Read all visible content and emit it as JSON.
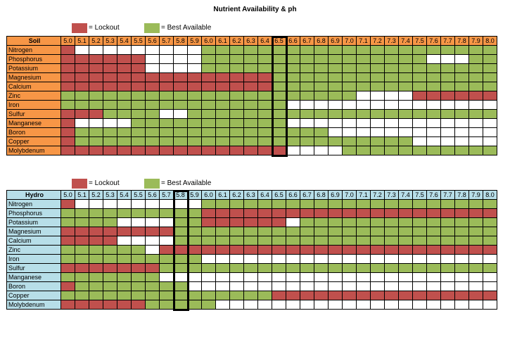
{
  "title": "Nutrient Availability & ph",
  "colors": {
    "lockout": "#c0504d",
    "best": "#9bbb59",
    "empty": "#ffffff",
    "soil_header": "#f79646",
    "hydro_header": "#b7dee8"
  },
  "legend": {
    "lockout": "= Lockout",
    "best": "= Best Available"
  },
  "chart_data": [
    {
      "type": "heatmap",
      "name": "Soil",
      "x": [
        "5.0",
        "5.1",
        "5.2",
        "5.3",
        "5.4",
        "5.5",
        "5.6",
        "5.7",
        "5.8",
        "5.9",
        "6.0",
        "6.1",
        "6.2",
        "6.3",
        "6.4",
        "6.5",
        "6.6",
        "6.7",
        "6.8",
        "6.9",
        "7.0",
        "7.1",
        "7.2",
        "7.3",
        "7.4",
        "7.5",
        "7.6",
        "7.7",
        "7.8",
        "7.9",
        "8.0"
      ],
      "highlight": "6.5",
      "value_legend": {
        "0": "empty",
        "1": "Lockout",
        "2": "Best Available"
      },
      "rows": [
        {
          "label": "Nitrogen",
          "values": [
            1,
            0,
            0,
            0,
            0,
            0,
            0,
            0,
            0,
            0,
            2,
            2,
            2,
            2,
            2,
            2,
            2,
            2,
            2,
            2,
            2,
            2,
            2,
            2,
            2,
            2,
            2,
            2,
            2,
            2,
            2
          ]
        },
        {
          "label": "Phosphorus",
          "values": [
            1,
            1,
            1,
            1,
            1,
            1,
            0,
            0,
            0,
            0,
            2,
            2,
            2,
            2,
            2,
            2,
            2,
            2,
            2,
            2,
            2,
            2,
            2,
            2,
            2,
            2,
            0,
            0,
            0,
            2,
            2
          ]
        },
        {
          "label": "Potassium",
          "values": [
            1,
            1,
            1,
            1,
            1,
            1,
            0,
            0,
            0,
            0,
            2,
            2,
            2,
            2,
            2,
            2,
            2,
            2,
            2,
            2,
            2,
            2,
            2,
            2,
            2,
            2,
            2,
            2,
            2,
            2,
            2
          ]
        },
        {
          "label": "Magnesium",
          "values": [
            1,
            1,
            1,
            1,
            1,
            1,
            1,
            1,
            1,
            1,
            1,
            1,
            1,
            1,
            1,
            2,
            2,
            2,
            2,
            2,
            2,
            2,
            2,
            2,
            2,
            2,
            2,
            2,
            2,
            2,
            2
          ]
        },
        {
          "label": "Calcium",
          "values": [
            1,
            1,
            1,
            1,
            1,
            1,
            1,
            1,
            1,
            1,
            1,
            1,
            1,
            1,
            1,
            2,
            2,
            2,
            2,
            2,
            2,
            2,
            2,
            2,
            2,
            2,
            2,
            2,
            2,
            2,
            2
          ]
        },
        {
          "label": "Zinc",
          "values": [
            2,
            2,
            2,
            2,
            2,
            2,
            2,
            2,
            2,
            2,
            2,
            2,
            2,
            2,
            2,
            2,
            2,
            2,
            2,
            2,
            2,
            0,
            0,
            0,
            0,
            1,
            1,
            1,
            1,
            1,
            1
          ]
        },
        {
          "label": "Iron",
          "values": [
            2,
            2,
            2,
            2,
            2,
            2,
            2,
            2,
            2,
            2,
            2,
            2,
            2,
            2,
            2,
            2,
            0,
            0,
            0,
            0,
            0,
            0,
            0,
            0,
            0,
            0,
            0,
            0,
            0,
            0,
            0
          ]
        },
        {
          "label": "Sulfur",
          "values": [
            1,
            1,
            1,
            2,
            2,
            2,
            2,
            0,
            0,
            2,
            2,
            2,
            2,
            2,
            2,
            2,
            2,
            2,
            2,
            2,
            2,
            2,
            2,
            2,
            2,
            2,
            2,
            2,
            2,
            2,
            2
          ]
        },
        {
          "label": "Manganese",
          "values": [
            1,
            0,
            0,
            0,
            0,
            2,
            2,
            2,
            2,
            2,
            2,
            2,
            2,
            2,
            2,
            2,
            0,
            0,
            0,
            0,
            0,
            0,
            0,
            0,
            0,
            0,
            0,
            0,
            0,
            0,
            0
          ]
        },
        {
          "label": "Boron",
          "values": [
            1,
            2,
            2,
            2,
            2,
            2,
            2,
            2,
            2,
            2,
            2,
            2,
            2,
            2,
            2,
            2,
            2,
            2,
            2,
            0,
            0,
            0,
            0,
            0,
            0,
            0,
            0,
            0,
            0,
            0,
            0
          ]
        },
        {
          "label": "Copper",
          "values": [
            1,
            2,
            2,
            2,
            2,
            2,
            2,
            2,
            2,
            2,
            2,
            2,
            2,
            2,
            2,
            2,
            2,
            2,
            2,
            2,
            2,
            2,
            2,
            2,
            2,
            0,
            0,
            0,
            0,
            0,
            0
          ]
        },
        {
          "label": "Molybdenum",
          "values": [
            1,
            1,
            1,
            1,
            1,
            1,
            1,
            1,
            1,
            1,
            1,
            1,
            1,
            1,
            1,
            1,
            0,
            0,
            0,
            0,
            2,
            2,
            2,
            2,
            2,
            2,
            2,
            2,
            2,
            2,
            2
          ]
        }
      ]
    },
    {
      "type": "heatmap",
      "name": "Hydro",
      "x": [
        "5.0",
        "5.1",
        "5.2",
        "5.3",
        "5.4",
        "5.5",
        "5.6",
        "5.7",
        "5.8",
        "5.9",
        "6.0",
        "6.1",
        "6.2",
        "6.3",
        "6.4",
        "6.5",
        "6.6",
        "6.7",
        "6.8",
        "6.9",
        "7.0",
        "7.1",
        "7.2",
        "7.3",
        "7.4",
        "7.5",
        "7.6",
        "7.7",
        "7.8",
        "7.9",
        "8.0"
      ],
      "highlight": "5.8",
      "value_legend": {
        "0": "empty",
        "1": "Lockout",
        "2": "Best Available"
      },
      "rows": [
        {
          "label": "Nitrogen",
          "values": [
            1,
            0,
            0,
            0,
            0,
            0,
            0,
            0,
            0,
            0,
            2,
            2,
            2,
            2,
            2,
            2,
            2,
            2,
            2,
            2,
            2,
            2,
            2,
            2,
            2,
            2,
            2,
            2,
            2,
            2,
            2
          ]
        },
        {
          "label": "Phosphorus",
          "values": [
            2,
            2,
            2,
            2,
            2,
            2,
            2,
            2,
            2,
            2,
            1,
            1,
            1,
            1,
            1,
            1,
            1,
            1,
            1,
            1,
            1,
            1,
            1,
            1,
            1,
            1,
            1,
            1,
            1,
            1,
            1
          ]
        },
        {
          "label": "Potassium",
          "values": [
            2,
            2,
            2,
            2,
            0,
            0,
            0,
            0,
            2,
            2,
            1,
            1,
            1,
            1,
            1,
            1,
            0,
            2,
            2,
            2,
            2,
            2,
            2,
            2,
            2,
            2,
            2,
            2,
            2,
            2,
            2
          ]
        },
        {
          "label": "Magnesium",
          "values": [
            1,
            1,
            1,
            1,
            1,
            1,
            1,
            1,
            2,
            2,
            2,
            2,
            2,
            2,
            2,
            2,
            2,
            2,
            2,
            2,
            2,
            2,
            2,
            2,
            2,
            2,
            2,
            2,
            2,
            2,
            2
          ]
        },
        {
          "label": "Calcium",
          "values": [
            1,
            1,
            1,
            1,
            0,
            0,
            0,
            0,
            2,
            2,
            2,
            2,
            2,
            2,
            2,
            2,
            2,
            2,
            2,
            2,
            2,
            2,
            2,
            2,
            2,
            2,
            2,
            2,
            2,
            2,
            2
          ]
        },
        {
          "label": "Zinc",
          "values": [
            2,
            2,
            2,
            2,
            2,
            2,
            0,
            1,
            1,
            1,
            1,
            1,
            1,
            1,
            1,
            1,
            1,
            1,
            1,
            1,
            1,
            1,
            1,
            1,
            1,
            1,
            1,
            1,
            1,
            1,
            1
          ]
        },
        {
          "label": "Iron",
          "values": [
            2,
            2,
            2,
            2,
            2,
            2,
            2,
            2,
            2,
            2,
            0,
            0,
            0,
            0,
            0,
            0,
            0,
            0,
            0,
            0,
            0,
            0,
            0,
            0,
            0,
            0,
            0,
            0,
            0,
            0,
            0
          ]
        },
        {
          "label": "Sulfur",
          "values": [
            1,
            1,
            1,
            1,
            1,
            1,
            1,
            2,
            2,
            2,
            2,
            2,
            2,
            2,
            2,
            2,
            2,
            2,
            2,
            2,
            2,
            2,
            2,
            2,
            2,
            2,
            2,
            2,
            2,
            2,
            2
          ]
        },
        {
          "label": "Manganese",
          "values": [
            2,
            2,
            2,
            2,
            2,
            2,
            2,
            0,
            0,
            0,
            0,
            0,
            0,
            0,
            0,
            0,
            0,
            0,
            0,
            0,
            0,
            0,
            0,
            0,
            0,
            0,
            0,
            0,
            0,
            0,
            0
          ]
        },
        {
          "label": "Boron",
          "values": [
            1,
            2,
            2,
            2,
            2,
            2,
            2,
            2,
            2,
            0,
            0,
            0,
            0,
            0,
            0,
            0,
            0,
            0,
            0,
            0,
            0,
            0,
            0,
            0,
            0,
            0,
            0,
            0,
            0,
            0,
            0
          ]
        },
        {
          "label": "Copper",
          "values": [
            2,
            2,
            2,
            2,
            2,
            2,
            2,
            2,
            2,
            2,
            2,
            2,
            2,
            2,
            2,
            1,
            1,
            1,
            1,
            1,
            1,
            1,
            1,
            1,
            1,
            1,
            1,
            1,
            1,
            1,
            1
          ]
        },
        {
          "label": "Molybdenum",
          "values": [
            1,
            1,
            1,
            1,
            1,
            1,
            2,
            2,
            2,
            2,
            2,
            0,
            0,
            0,
            0,
            0,
            0,
            0,
            0,
            0,
            0,
            0,
            0,
            0,
            0,
            0,
            0,
            0,
            0,
            0,
            0
          ]
        }
      ]
    }
  ]
}
